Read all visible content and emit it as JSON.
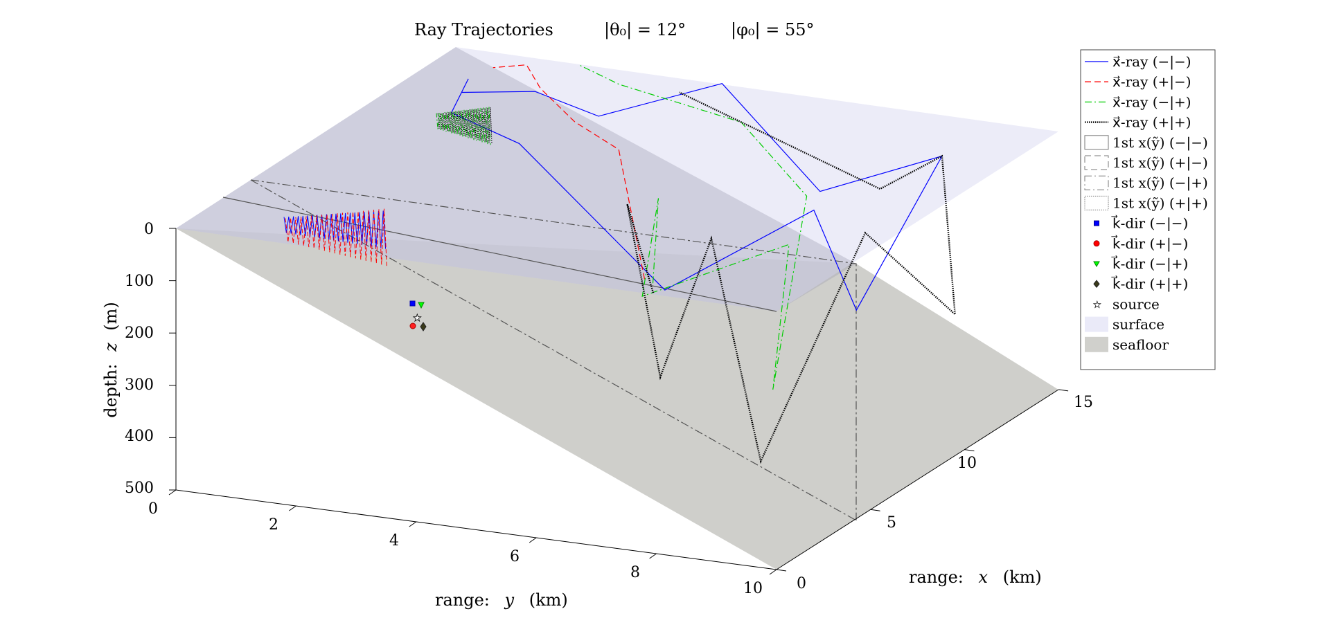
{
  "chart_data": {
    "type": "line",
    "title_main": "Ray Trajectories",
    "title_theta": "|θ₀| = 12°",
    "title_phi": "|φ₀| = 55°",
    "axes": {
      "x": {
        "label_prefix": "range:",
        "label_var": "x",
        "label_unit": "(km)",
        "ticks": [
          "0",
          "5",
          "10",
          "15"
        ],
        "range": [
          0,
          15
        ]
      },
      "y": {
        "label_prefix": "range:",
        "label_var": "y",
        "label_unit": "(km)",
        "ticks": [
          "0",
          "2",
          "4",
          "6",
          "8",
          "10"
        ],
        "range": [
          0,
          10
        ]
      },
      "z": {
        "label_prefix": "depth:",
        "label_var": "z",
        "label_unit": "(m)",
        "ticks": [
          "0",
          "100",
          "200",
          "300",
          "400",
          "500"
        ],
        "range": [
          0,
          500
        ],
        "reversed": true
      }
    },
    "legend_placement": "top-right",
    "legend": [
      {
        "kind": "line",
        "label": "x⃗-ray (−|−)",
        "color": "#0000ff",
        "dash": "solid"
      },
      {
        "kind": "line",
        "label": "x⃗-ray (+|−)",
        "color": "#ff0000",
        "dash": "dashed"
      },
      {
        "kind": "line",
        "label": "x⃗-ray (−|+)",
        "color": "#00cc00",
        "dash": "dashdot"
      },
      {
        "kind": "line",
        "label": "x⃗-ray (+|+)",
        "color": "#000000",
        "dash": "dotted"
      },
      {
        "kind": "box",
        "label": "1st x(ỹ) (−|−)",
        "dash": "solid"
      },
      {
        "kind": "box",
        "label": "1st x(ỹ) (+|−)",
        "dash": "dashed"
      },
      {
        "kind": "box",
        "label": "1st x(ỹ) (−|+)",
        "dash": "dashdot"
      },
      {
        "kind": "box",
        "label": "1st x(ỹ) (+|+)",
        "dash": "dotted"
      },
      {
        "kind": "marker",
        "label": "k⃗-dir (−|−)",
        "color": "#0000ff",
        "marker": "square"
      },
      {
        "kind": "marker",
        "label": "k⃗-dir (+|−)",
        "color": "#ff0000",
        "marker": "circle"
      },
      {
        "kind": "marker",
        "label": "k⃗-dir (−|+)",
        "color": "#00ff00",
        "marker": "triangle-down"
      },
      {
        "kind": "marker",
        "label": "k⃗-dir (+|+)",
        "color": "#3a3a1a",
        "marker": "diamond"
      },
      {
        "kind": "marker",
        "label": "source",
        "color": "#ffffff",
        "marker": "star"
      },
      {
        "kind": "patch",
        "label": "surface",
        "color": "#eaeaf8"
      },
      {
        "kind": "patch",
        "label": "seafloor",
        "color": "#d0d0cc"
      }
    ],
    "surface": {
      "depth": 0,
      "color": "#e9e9f7"
    },
    "seafloor": {
      "depth_at_y0": 0,
      "depth_at_y10": 500,
      "color": "#cfcfcb"
    },
    "source": {
      "x": 7.5,
      "y": 5.5,
      "z": 200
    },
    "series": [
      {
        "name": "x⃗-ray (−|−)",
        "color": "#0000ff",
        "dash": "solid",
        "points": [
          [
            12.0,
            1.0,
            0
          ],
          [
            14.0,
            1.6,
            35
          ],
          [
            14.5,
            2.5,
            80
          ],
          [
            15.0,
            4.4,
            0
          ],
          [
            13.5,
            6.5,
            140
          ],
          [
            12.0,
            9.0,
            0
          ],
          [
            11.6,
            7.7,
            305
          ],
          [
            7.1,
            8.4,
            0
          ],
          [
            7.8,
            5.7,
            210
          ],
          [
            9.0,
            2.9,
            0
          ],
          [
            10.5,
            1.3,
            0
          ],
          [
            13.0,
            0.8,
            0
          ]
        ]
      },
      {
        "name": "x⃗-ray (+|−)",
        "color": "#ff0000",
        "dash": "dashed",
        "points": [
          [
            8.0,
            5.3,
            200
          ],
          [
            9.5,
            4.4,
            0
          ],
          [
            11.0,
            3.2,
            0
          ],
          [
            13.0,
            2.0,
            0
          ],
          [
            14.5,
            1.3,
            0
          ],
          [
            14.0,
            0.9,
            0
          ]
        ]
      },
      {
        "name": "x⃗-ray (−|+)",
        "color": "#00cc00",
        "dash": "dashdot",
        "points": [
          [
            7.8,
            5.5,
            200
          ],
          [
            6.5,
            6.0,
            0
          ],
          [
            5.0,
            6.2,
            150
          ],
          [
            4.5,
            8.8,
            0
          ],
          [
            3.0,
            9.0,
            240
          ],
          [
            8.0,
            8.0,
            0
          ],
          [
            12.5,
            5.5,
            0
          ],
          [
            14.0,
            3.0,
            0
          ],
          [
            15.0,
            2.0,
            0
          ]
        ]
      },
      {
        "name": "x⃗-ray (+|+)",
        "color": "#000000",
        "dash": "dotted",
        "points": [
          [
            7.5,
            5.6,
            210
          ],
          [
            5.8,
            5.7,
            0
          ],
          [
            5.0,
            6.5,
            300
          ],
          [
            4.2,
            7.6,
            0
          ],
          [
            3.0,
            8.8,
            380
          ],
          [
            6.0,
            9.6,
            0
          ],
          [
            9.5,
            10.0,
            230
          ],
          [
            12.0,
            9.0,
            0
          ],
          [
            13.5,
            7.5,
            120
          ],
          [
            14.0,
            4.0,
            0
          ]
        ]
      }
    ]
  }
}
